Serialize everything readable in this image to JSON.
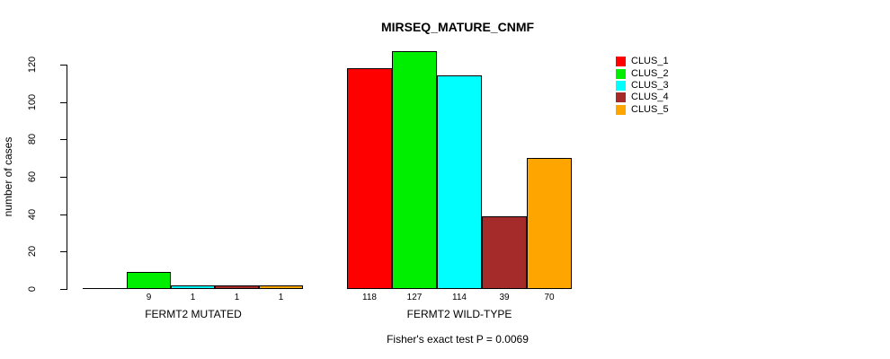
{
  "chart_data": {
    "type": "bar",
    "title": "MIRSEQ_MATURE_CNMF",
    "ylabel": "number of cases",
    "yticks": [
      0,
      20,
      40,
      60,
      80,
      100,
      120
    ],
    "ylim": [
      0,
      130
    ],
    "grid": false,
    "legend_position": "top-right",
    "categories": [
      "FERMT2 MUTATED",
      "FERMT2 WILD-TYPE"
    ],
    "series": [
      {
        "name": "CLUS_1",
        "color": "#ff0000",
        "values": [
          0,
          118
        ]
      },
      {
        "name": "CLUS_2",
        "color": "#00ee00",
        "values": [
          9,
          127
        ]
      },
      {
        "name": "CLUS_3",
        "color": "#00ffff",
        "values": [
          1,
          114
        ]
      },
      {
        "name": "CLUS_4",
        "color": "#a52a2a",
        "values": [
          1,
          39
        ]
      },
      {
        "name": "CLUS_5",
        "color": "#ffa500",
        "values": [
          1,
          70
        ]
      }
    ],
    "bar_value_labels": [
      [
        "",
        "9",
        "1",
        "1",
        "1"
      ],
      [
        "118",
        "127",
        "114",
        "39",
        "70"
      ]
    ],
    "annotation": "Fisher's exact test P = 0.0069"
  }
}
